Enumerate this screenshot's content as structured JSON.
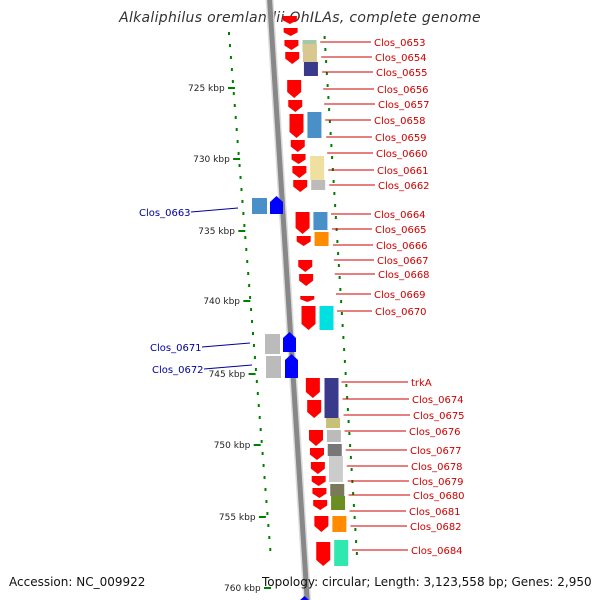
{
  "title": "Alkaliphilus oremlandii OhILAs, complete genome",
  "accession_text": "Accession: NC_009922",
  "info_text": "Topology: circular; Length: 3,123,558 bp; Genes: 2,950",
  "scale_labels": [
    "725 kbp",
    "730 kbp",
    "735 kbp",
    "740 kbp",
    "745 kbp",
    "750 kbp",
    "755 kbp",
    "760 kbp"
  ],
  "left_gene_labels": [
    "Clos_0663",
    "Clos_0671",
    "Clos_0672"
  ],
  "right_gene_labels": [
    "Clos_0653",
    "Clos_0654",
    "Clos_0655",
    "Clos_0656",
    "Clos_0657",
    "Clos_0658",
    "Clos_0659",
    "Clos_0660",
    "Clos_0661",
    "Clos_0662",
    "Clos_0664",
    "Clos_0665",
    "Clos_0666",
    "Clos_0667",
    "Clos_0668",
    "Clos_0669",
    "Clos_0670",
    "trkA",
    "Clos_0674",
    "Clos_0675",
    "Clos_0676",
    "Clos_0677",
    "Clos_0678",
    "Clos_0679",
    "Clos_0680",
    "Clos_0681",
    "Clos_0682",
    "Clos_0684"
  ],
  "colors": {
    "forward_label": "#cc0000",
    "reverse_label": "#000099",
    "forward_gene": "#ff0000",
    "reverse_gene": "#0000ff",
    "ticks": "#008000",
    "backbone": "#888888"
  }
}
